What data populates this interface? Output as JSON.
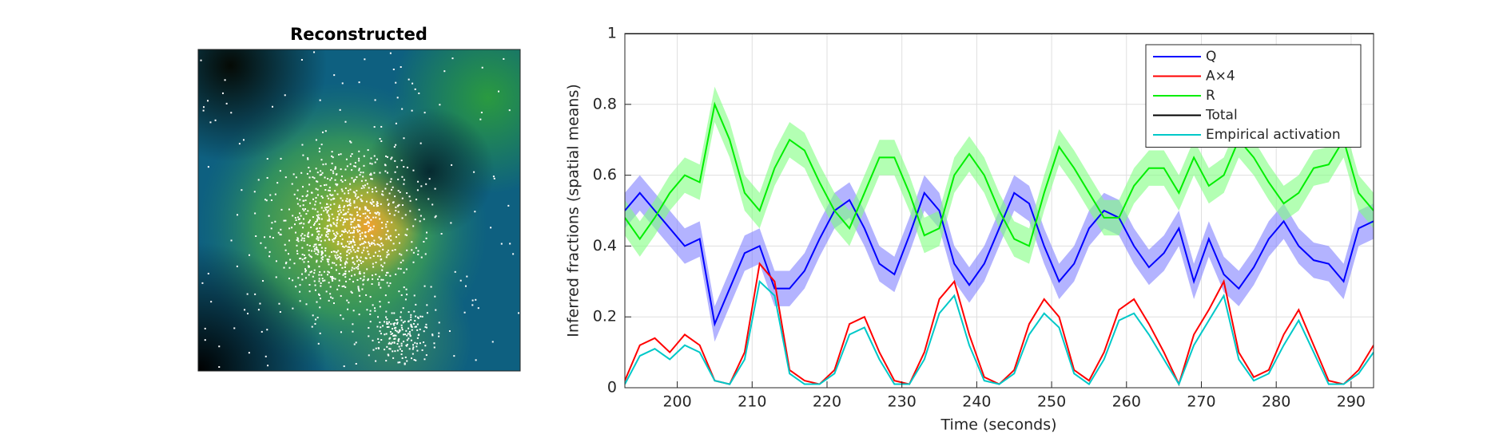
{
  "panel_title": "Reconstructed",
  "chart_data": {
    "type": "line",
    "xlabel": "Time (seconds)",
    "ylabel": "Inferred fractions (spatial means)",
    "xlim": [
      193,
      293
    ],
    "ylim": [
      0,
      1
    ],
    "xticks": [
      200,
      210,
      220,
      230,
      240,
      250,
      260,
      270,
      280,
      290
    ],
    "yticks": [
      0,
      0.2,
      0.4,
      0.6,
      0.8,
      1
    ],
    "grid": true,
    "legend": "upper right",
    "x": [
      193,
      195,
      197,
      199,
      201,
      203,
      205,
      207,
      209,
      211,
      213,
      215,
      217,
      219,
      221,
      223,
      225,
      227,
      229,
      231,
      233,
      235,
      237,
      239,
      241,
      243,
      245,
      247,
      249,
      251,
      253,
      255,
      257,
      259,
      261,
      263,
      265,
      267,
      269,
      271,
      273,
      275,
      277,
      279,
      281,
      283,
      285,
      287,
      289,
      291,
      293
    ],
    "series": [
      {
        "name": "Q",
        "color": "#0000ff",
        "band_color": "#8080ff",
        "error": 0.05,
        "values": [
          0.5,
          0.55,
          0.5,
          0.45,
          0.4,
          0.42,
          0.18,
          0.28,
          0.38,
          0.4,
          0.28,
          0.28,
          0.33,
          0.42,
          0.5,
          0.53,
          0.45,
          0.35,
          0.32,
          0.43,
          0.55,
          0.5,
          0.35,
          0.29,
          0.35,
          0.45,
          0.55,
          0.52,
          0.4,
          0.3,
          0.35,
          0.45,
          0.5,
          0.48,
          0.4,
          0.34,
          0.38,
          0.45,
          0.3,
          0.42,
          0.32,
          0.28,
          0.34,
          0.42,
          0.47,
          0.4,
          0.36,
          0.35,
          0.3,
          0.45,
          0.47
        ]
      },
      {
        "name": "A×4",
        "color": "#ff0000",
        "values": [
          0.02,
          0.12,
          0.14,
          0.1,
          0.15,
          0.12,
          0.02,
          0.01,
          0.1,
          0.35,
          0.3,
          0.05,
          0.02,
          0.01,
          0.05,
          0.18,
          0.2,
          0.1,
          0.02,
          0.01,
          0.1,
          0.25,
          0.3,
          0.15,
          0.03,
          0.01,
          0.05,
          0.18,
          0.25,
          0.2,
          0.05,
          0.02,
          0.1,
          0.22,
          0.25,
          0.18,
          0.1,
          0.01,
          0.15,
          0.22,
          0.3,
          0.1,
          0.03,
          0.05,
          0.15,
          0.22,
          0.12,
          0.02,
          0.01,
          0.05,
          0.12
        ]
      },
      {
        "name": "R",
        "color": "#00ee00",
        "band_color": "#80ff80",
        "error": 0.05,
        "values": [
          0.48,
          0.42,
          0.48,
          0.55,
          0.6,
          0.58,
          0.8,
          0.7,
          0.55,
          0.5,
          0.62,
          0.7,
          0.67,
          0.58,
          0.5,
          0.45,
          0.55,
          0.65,
          0.65,
          0.55,
          0.43,
          0.45,
          0.6,
          0.66,
          0.6,
          0.5,
          0.42,
          0.4,
          0.55,
          0.68,
          0.62,
          0.55,
          0.48,
          0.48,
          0.57,
          0.62,
          0.62,
          0.55,
          0.65,
          0.57,
          0.6,
          0.7,
          0.65,
          0.58,
          0.52,
          0.55,
          0.62,
          0.63,
          0.7,
          0.55,
          0.5
        ]
      },
      {
        "name": "Total",
        "color": "#000000",
        "values": [
          1,
          1,
          1,
          1,
          1,
          1,
          1,
          1,
          1,
          1,
          1,
          1,
          1,
          1,
          1,
          1,
          1,
          1,
          1,
          1,
          1,
          1,
          1,
          1,
          1,
          1,
          1,
          1,
          1,
          1,
          1,
          1,
          1,
          1,
          1,
          1,
          1,
          1,
          1,
          1,
          1,
          1,
          1,
          1,
          1,
          1,
          1,
          1,
          1,
          1,
          1
        ]
      },
      {
        "name": "Empirical activation",
        "color": "#00c8c8",
        "values": [
          0.01,
          0.09,
          0.11,
          0.08,
          0.12,
          0.1,
          0.02,
          0.01,
          0.08,
          0.3,
          0.26,
          0.04,
          0.01,
          0.01,
          0.04,
          0.15,
          0.17,
          0.08,
          0.01,
          0.01,
          0.08,
          0.21,
          0.26,
          0.12,
          0.02,
          0.01,
          0.04,
          0.15,
          0.21,
          0.17,
          0.04,
          0.01,
          0.08,
          0.19,
          0.21,
          0.15,
          0.08,
          0.01,
          0.12,
          0.19,
          0.26,
          0.08,
          0.02,
          0.04,
          0.12,
          0.19,
          0.1,
          0.01,
          0.01,
          0.04,
          0.1
        ]
      }
    ]
  }
}
